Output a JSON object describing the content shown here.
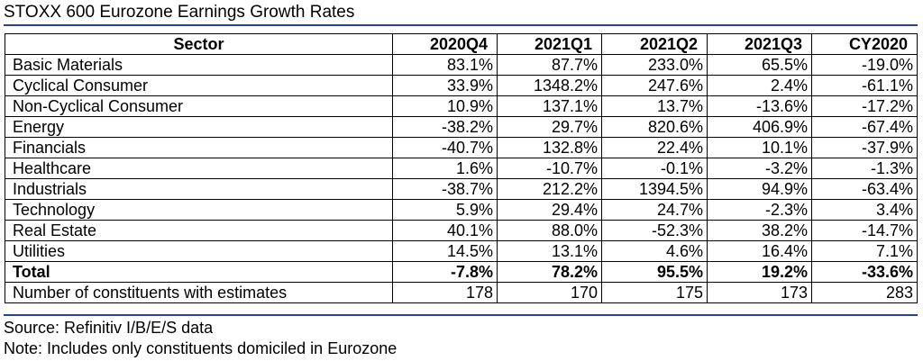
{
  "chart_data": {
    "type": "table",
    "title": "STOXX 600 Eurozone Earnings Growth Rates",
    "columns": [
      "Sector",
      "2020Q4",
      "2021Q1",
      "2021Q2",
      "2021Q3",
      "CY2020"
    ],
    "rows": [
      {
        "sector": "Basic Materials",
        "values": [
          "83.1%",
          "87.7%",
          "233.0%",
          "65.5%",
          "-19.0%"
        ]
      },
      {
        "sector": "Cyclical Consumer",
        "values": [
          "33.9%",
          "1348.2%",
          "247.6%",
          "2.4%",
          "-61.1%"
        ]
      },
      {
        "sector": "Non-Cyclical Consumer",
        "values": [
          "10.9%",
          "137.1%",
          "13.7%",
          "-13.6%",
          "-17.2%"
        ]
      },
      {
        "sector": "Energy",
        "values": [
          "-38.2%",
          "29.7%",
          "820.6%",
          "406.9%",
          "-67.4%"
        ]
      },
      {
        "sector": "Financials",
        "values": [
          "-40.7%",
          "132.8%",
          "22.4%",
          "10.1%",
          "-37.9%"
        ]
      },
      {
        "sector": "Healthcare",
        "values": [
          "1.6%",
          "-10.7%",
          "-0.1%",
          "-3.2%",
          "-1.3%"
        ]
      },
      {
        "sector": "Industrials",
        "values": [
          "-38.7%",
          "212.2%",
          "1394.5%",
          "94.9%",
          "-63.4%"
        ]
      },
      {
        "sector": "Technology",
        "values": [
          "5.9%",
          "29.4%",
          "24.7%",
          "-2.3%",
          "3.4%"
        ]
      },
      {
        "sector": "Real Estate",
        "values": [
          "40.1%",
          "88.0%",
          "-52.3%",
          "38.2%",
          "-14.7%"
        ]
      },
      {
        "sector": "Utilities",
        "values": [
          "14.5%",
          "13.1%",
          "4.6%",
          "16.4%",
          "7.1%"
        ]
      },
      {
        "sector": "Total",
        "values": [
          "-7.8%",
          "78.2%",
          "95.5%",
          "19.2%",
          "-33.6%"
        ],
        "bold": true
      },
      {
        "sector": "Number of constituents with estimates",
        "values": [
          "178",
          "170",
          "175",
          "173",
          "283"
        ]
      }
    ]
  },
  "source": "Source: Refinitiv I/B/E/S data",
  "note": "Note: Includes only constituents domiciled in Eurozone",
  "colors": {
    "rule": "#1f3fbf",
    "text": "#000000",
    "background": "#ffffff"
  }
}
